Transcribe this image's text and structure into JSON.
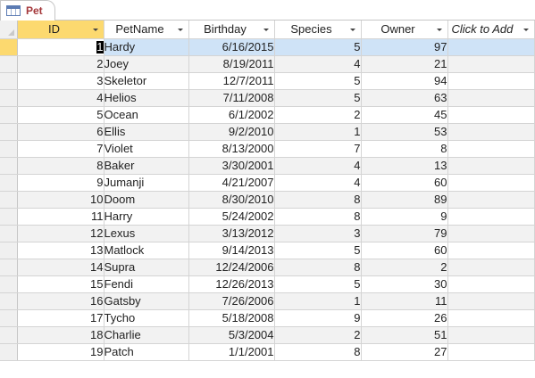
{
  "tab": {
    "label": "Pet",
    "icon": "table-icon"
  },
  "columns": [
    {
      "key": "id",
      "label": "ID"
    },
    {
      "key": "petname",
      "label": "PetName"
    },
    {
      "key": "birthday",
      "label": "Birthday"
    },
    {
      "key": "species",
      "label": "Species"
    },
    {
      "key": "owner",
      "label": "Owner"
    },
    {
      "key": "add",
      "label": "Click to Add"
    }
  ],
  "rows": [
    {
      "id": "1",
      "petname": "Hardy",
      "birthday": "6/16/2015",
      "species": "5",
      "owner": "97"
    },
    {
      "id": "2",
      "petname": "Joey",
      "birthday": "8/19/2011",
      "species": "4",
      "owner": "21"
    },
    {
      "id": "3",
      "petname": "Skeletor",
      "birthday": "12/7/2011",
      "species": "5",
      "owner": "94"
    },
    {
      "id": "4",
      "petname": "Helios",
      "birthday": "7/11/2008",
      "species": "5",
      "owner": "63"
    },
    {
      "id": "5",
      "petname": "Ocean",
      "birthday": "6/1/2002",
      "species": "2",
      "owner": "45"
    },
    {
      "id": "6",
      "petname": "Ellis",
      "birthday": "9/2/2010",
      "species": "1",
      "owner": "53"
    },
    {
      "id": "7",
      "petname": "Violet",
      "birthday": "8/13/2000",
      "species": "7",
      "owner": "8"
    },
    {
      "id": "8",
      "petname": "Baker",
      "birthday": "3/30/2001",
      "species": "4",
      "owner": "13"
    },
    {
      "id": "9",
      "petname": "Jumanji",
      "birthday": "4/21/2007",
      "species": "4",
      "owner": "60"
    },
    {
      "id": "10",
      "petname": "Doom",
      "birthday": "8/30/2010",
      "species": "8",
      "owner": "89"
    },
    {
      "id": "11",
      "petname": "Harry",
      "birthday": "5/24/2002",
      "species": "8",
      "owner": "9"
    },
    {
      "id": "12",
      "petname": "Lexus",
      "birthday": "3/13/2012",
      "species": "3",
      "owner": "79"
    },
    {
      "id": "13",
      "petname": "Matlock",
      "birthday": "9/14/2013",
      "species": "5",
      "owner": "60"
    },
    {
      "id": "14",
      "petname": "Supra",
      "birthday": "12/24/2006",
      "species": "8",
      "owner": "2"
    },
    {
      "id": "15",
      "petname": "Fendi",
      "birthday": "12/26/2013",
      "species": "5",
      "owner": "30"
    },
    {
      "id": "16",
      "petname": "Gatsby",
      "birthday": "7/26/2006",
      "species": "1",
      "owner": "11"
    },
    {
      "id": "17",
      "petname": "Tycho",
      "birthday": "5/18/2008",
      "species": "9",
      "owner": "26"
    },
    {
      "id": "18",
      "petname": "Charlie",
      "birthday": "5/3/2004",
      "species": "2",
      "owner": "51"
    },
    {
      "id": "19",
      "petname": "Patch",
      "birthday": "1/1/2001",
      "species": "8",
      "owner": "27"
    }
  ],
  "colors": {
    "selected_header": "#fcd96f",
    "current_row": "#cfe3f7",
    "tab_label": "#a4373a"
  }
}
